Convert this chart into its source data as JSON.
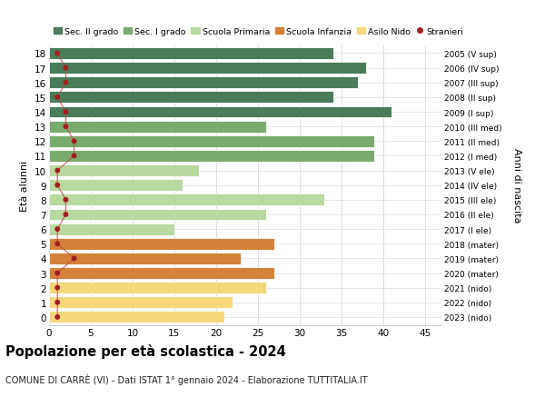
{
  "ages": [
    18,
    17,
    16,
    15,
    14,
    13,
    12,
    11,
    10,
    9,
    8,
    7,
    6,
    5,
    4,
    3,
    2,
    1,
    0
  ],
  "right_labels": [
    "2005 (V sup)",
    "2006 (IV sup)",
    "2007 (III sup)",
    "2008 (II sup)",
    "2009 (I sup)",
    "2010 (III med)",
    "2011 (II med)",
    "2012 (I med)",
    "2013 (V ele)",
    "2014 (IV ele)",
    "2015 (III ele)",
    "2016 (II ele)",
    "2017 (I ele)",
    "2018 (mater)",
    "2019 (mater)",
    "2020 (mater)",
    "2021 (nido)",
    "2022 (nido)",
    "2023 (nido)"
  ],
  "bar_values": [
    34,
    38,
    37,
    34,
    41,
    26,
    39,
    39,
    18,
    16,
    33,
    26,
    15,
    27,
    23,
    27,
    26,
    22,
    21
  ],
  "stranieri": [
    1,
    2,
    2,
    1,
    2,
    2,
    3,
    3,
    1,
    1,
    2,
    2,
    1,
    1,
    3,
    1,
    1,
    1,
    1
  ],
  "bar_colors": [
    "#4a7c59",
    "#4a7c59",
    "#4a7c59",
    "#4a7c59",
    "#4a7c59",
    "#7aab6e",
    "#7aab6e",
    "#7aab6e",
    "#b8d9a0",
    "#b8d9a0",
    "#b8d9a0",
    "#b8d9a0",
    "#b8d9a0",
    "#d4823a",
    "#d4823a",
    "#d4823a",
    "#f5d87c",
    "#f5d87c",
    "#f5d87c"
  ],
  "legend_labels": [
    "Sec. II grado",
    "Sec. I grado",
    "Scuola Primaria",
    "Scuola Infanzia",
    "Asilo Nido",
    "Stranieri"
  ],
  "legend_colors": [
    "#4a7c59",
    "#7aab6e",
    "#b8d9a0",
    "#d4823a",
    "#f5d87c",
    "#a02020"
  ],
  "title": "Popolazione per età scolastica - 2024",
  "subtitle": "COMUNE DI CARRÈ (VI) - Dati ISTAT 1° gennaio 2024 - Elaborazione TUTTITALIA.IT",
  "ylabel": "Età alunni",
  "right_ylabel": "Anni di nascita",
  "xlabel_vals": [
    0,
    5,
    10,
    15,
    20,
    25,
    30,
    35,
    40,
    45
  ],
  "xlim": [
    0,
    47
  ],
  "background_color": "#ffffff",
  "grid_color": "#dddddd",
  "stranieri_color": "#a02020",
  "stranieri_line_color": "#c04040"
}
